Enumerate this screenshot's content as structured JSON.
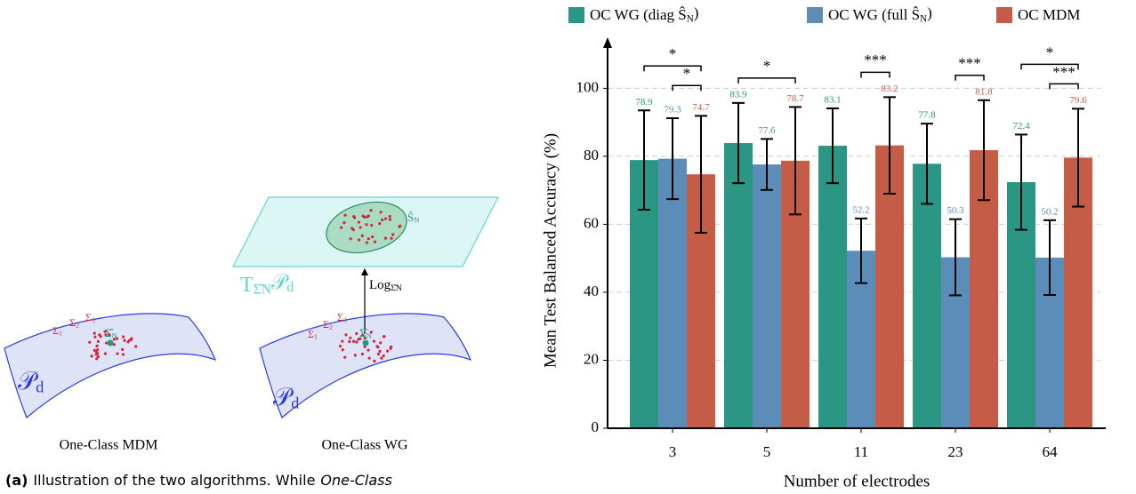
{
  "diagram": {
    "manifold_label": "𝒫_d",
    "sigma_labels": [
      "Σ_1",
      "Σ_2",
      "Σ_3"
    ],
    "mean_label": "Σ̂_N",
    "tangent_label": "T_{Σ̂N}𝒫_d",
    "log_label": "Log_{Σ̂N}",
    "ellipse_label": "Ŝ_N",
    "left_title": "One-Class MDM",
    "right_title": "One-Class WG",
    "caption": {
      "tag": "(a)",
      "text": "Illustration of the two algorithms.  While",
      "emph": "One-Class"
    }
  },
  "chart_data": {
    "type": "bar",
    "xlabel": "Number of electrodes",
    "ylabel": "Mean Test Balanced Accuracy (%)",
    "categories": [
      "3",
      "5",
      "11",
      "23",
      "64"
    ],
    "series": [
      {
        "name": "OC WG (diag Ŝ_N)",
        "color": "#2a9683",
        "values": [
          78.9,
          83.9,
          83.1,
          77.8,
          72.4
        ],
        "errors": [
          14.6,
          11.8,
          11,
          11.8,
          14
        ]
      },
      {
        "name": "OC WG (full Ŝ_N)",
        "color": "#5b8db8",
        "values": [
          79.3,
          77.6,
          52.2,
          50.3,
          50.2
        ],
        "errors": [
          11.9,
          7.5,
          9.5,
          11.2,
          11
        ]
      },
      {
        "name": "OC MDM",
        "color": "#c45c48",
        "values": [
          74.7,
          78.7,
          83.2,
          81.8,
          79.6
        ],
        "errors": [
          17.2,
          15.8,
          14.2,
          14.7,
          14.4
        ]
      }
    ],
    "ylim": [
      0,
      115
    ],
    "yticks": [
      0,
      20,
      40,
      60,
      80,
      100
    ],
    "grid": true,
    "significance": [
      {
        "category": 0,
        "from": 1,
        "to": 2,
        "label": "*"
      },
      {
        "category": 0,
        "from": 0,
        "to": 2,
        "label": "*"
      },
      {
        "category": 1,
        "from": 0,
        "to": 2,
        "label": "*"
      },
      {
        "category": 2,
        "from": 1,
        "to": 2,
        "label": "***"
      },
      {
        "category": 3,
        "from": 1,
        "to": 2,
        "label": "***"
      },
      {
        "category": 4,
        "from": 1,
        "to": 2,
        "label": "***"
      },
      {
        "category": 4,
        "from": 0,
        "to": 2,
        "label": "*"
      }
    ]
  }
}
